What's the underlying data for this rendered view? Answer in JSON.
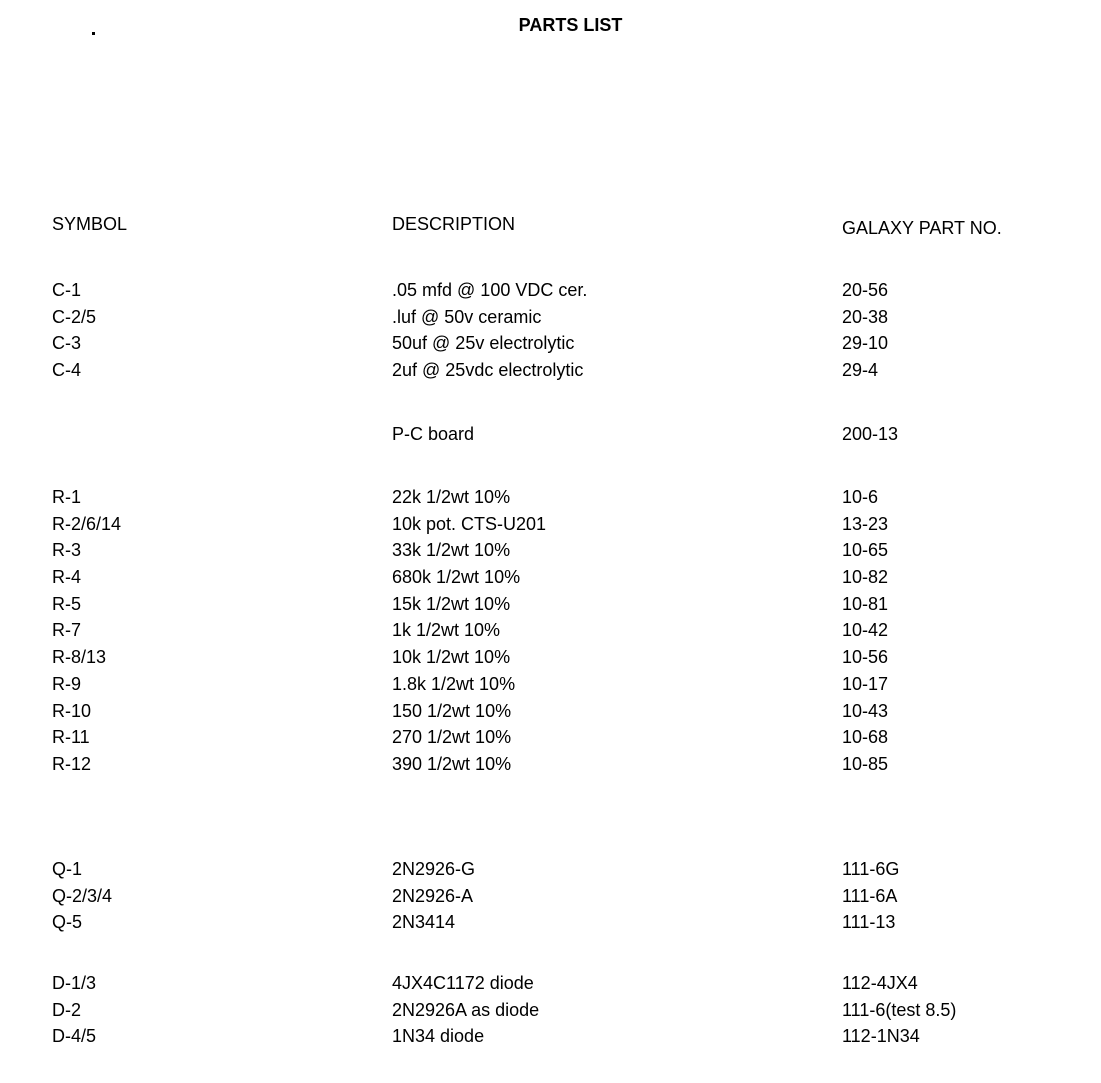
{
  "title": "PARTS LIST",
  "headers": {
    "symbol": "SYMBOL",
    "description": "DESCRIPTION",
    "part_no": "GALAXY PART NO."
  },
  "groups": [
    {
      "rows": [
        {
          "symbol": "C-1",
          "description": ".05 mfd @ 100 VDC cer.",
          "part_no": "20-56"
        },
        {
          "symbol": "C-2/5",
          "description": ".luf @ 50v ceramic",
          "part_no": "20-38"
        },
        {
          "symbol": "C-3",
          "description": "50uf @ 25v electrolytic",
          "part_no": "29-10"
        },
        {
          "symbol": "C-4",
          "description": "2uf @ 25vdc electrolytic",
          "part_no": "29-4"
        }
      ]
    },
    {
      "rows": [
        {
          "symbol": "",
          "description": "P-C board",
          "part_no": "200-13"
        }
      ]
    },
    {
      "rows": [
        {
          "symbol": "R-1",
          "description": "22k 1/2wt  10%",
          "part_no": "10-6"
        },
        {
          "symbol": "R-2/6/14",
          "description": "10k pot. CTS-U201",
          "part_no": "13-23"
        },
        {
          "symbol": "R-3",
          "description": "33k 1/2wt  10%",
          "part_no": "10-65"
        },
        {
          "symbol": "R-4",
          "description": "680k 1/2wt  10%",
          "part_no": "10-82"
        },
        {
          "symbol": "R-5",
          "description": "15k 1/2wt  10%",
          "part_no": "10-81"
        },
        {
          "symbol": "R-7",
          "description": "1k 1/2wt  10%",
          "part_no": "10-42"
        },
        {
          "symbol": "R-8/13",
          "description": "10k 1/2wt  10%",
          "part_no": "10-56"
        },
        {
          "symbol": "R-9",
          "description": "1.8k 1/2wt  10%",
          "part_no": "10-17"
        },
        {
          "symbol": "R-10",
          "description": "150 1/2wt  10%",
          "part_no": "10-43"
        },
        {
          "symbol": "R-11",
          "description": "270 1/2wt  10%",
          "part_no": "10-68"
        },
        {
          "symbol": "R-12",
          "description": "390 1/2wt  10%",
          "part_no": "10-85"
        }
      ]
    },
    {
      "rows": [
        {
          "symbol": "Q-1",
          "description": "2N2926-G",
          "part_no": "111-6G"
        },
        {
          "symbol": "Q-2/3/4",
          "description": "2N2926-A",
          "part_no": "111-6A"
        },
        {
          "symbol": "Q-5",
          "description": "2N3414",
          "part_no": "111-13"
        }
      ]
    },
    {
      "rows": [
        {
          "symbol": "D-1/3",
          "description": "4JX4C1172 diode",
          "part_no": "112-4JX4"
        },
        {
          "symbol": "D-2",
          "description": "2N2926A as diode",
          "part_no": "111-6(test 8.5)"
        },
        {
          "symbol": "D-4/5",
          "description": "1N34 diode",
          "part_no": "112-1N34"
        }
      ]
    }
  ]
}
